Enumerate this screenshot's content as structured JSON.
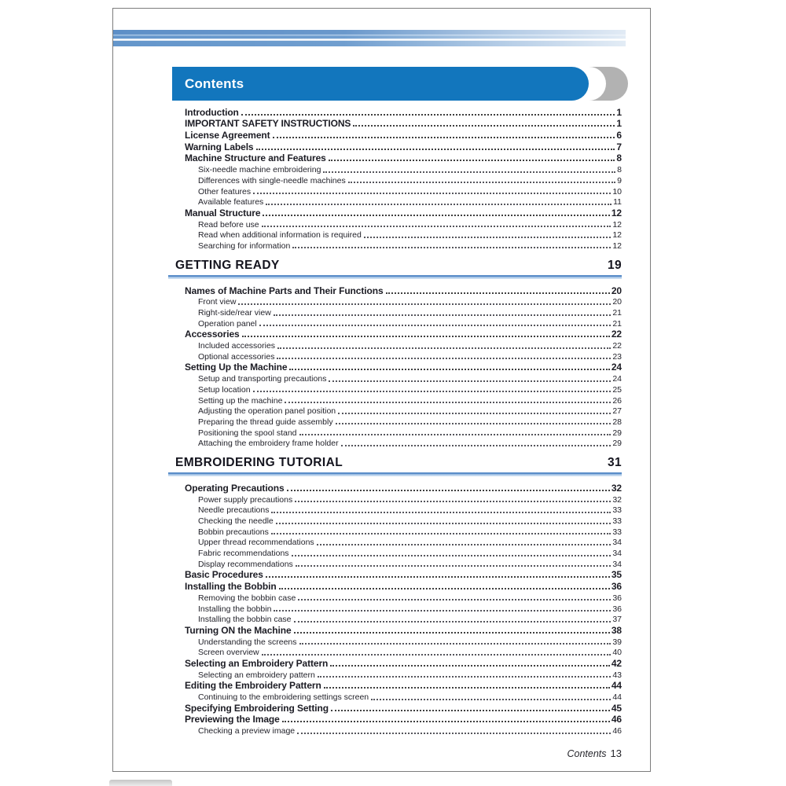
{
  "banner": {
    "title": "Contents"
  },
  "footer": {
    "label": "Contents",
    "page": "13"
  },
  "colors": {
    "banner_blue": "#1276bd",
    "band_blue": "#6496cb",
    "crescent_gray": "#b2b2b2",
    "section_rule_blue": "#5b8ec9",
    "text": "#1c1c24"
  },
  "toc": [
    {
      "type": "entry",
      "level": 1,
      "label": "Introduction",
      "page": "1"
    },
    {
      "type": "entry",
      "level": 1,
      "label": "IMPORTANT SAFETY INSTRUCTIONS",
      "page": "1"
    },
    {
      "type": "entry",
      "level": 1,
      "label": "License Agreement",
      "page": "6"
    },
    {
      "type": "entry",
      "level": 1,
      "label": "Warning Labels",
      "page": "7"
    },
    {
      "type": "entry",
      "level": 1,
      "label": "Machine Structure and Features",
      "page": "8"
    },
    {
      "type": "entry",
      "level": 2,
      "label": "Six-needle machine embroidering",
      "page": "8"
    },
    {
      "type": "entry",
      "level": 2,
      "label": "Differences with single-needle machines",
      "page": "9"
    },
    {
      "type": "entry",
      "level": 2,
      "label": "Other features",
      "page": "10"
    },
    {
      "type": "entry",
      "level": 2,
      "label": "Available features",
      "page": "11"
    },
    {
      "type": "entry",
      "level": 1,
      "label": "Manual Structure",
      "page": "12"
    },
    {
      "type": "entry",
      "level": 2,
      "label": "Read before use",
      "page": "12"
    },
    {
      "type": "entry",
      "level": 2,
      "label": "Read when additional information is required",
      "page": "12"
    },
    {
      "type": "entry",
      "level": 2,
      "label": "Searching for information",
      "page": "12"
    },
    {
      "type": "section",
      "label": "GETTING READY",
      "page": "19"
    },
    {
      "type": "entry",
      "level": 1,
      "label": "Names of Machine Parts and Their Functions",
      "page": "20"
    },
    {
      "type": "entry",
      "level": 2,
      "label": "Front view",
      "page": "20"
    },
    {
      "type": "entry",
      "level": 2,
      "label": "Right-side/rear view",
      "page": "21"
    },
    {
      "type": "entry",
      "level": 2,
      "label": "Operation panel",
      "page": "21"
    },
    {
      "type": "entry",
      "level": 1,
      "label": "Accessories",
      "page": "22"
    },
    {
      "type": "entry",
      "level": 2,
      "label": "Included accessories",
      "page": "22"
    },
    {
      "type": "entry",
      "level": 2,
      "label": "Optional accessories",
      "page": "23"
    },
    {
      "type": "entry",
      "level": 1,
      "label": "Setting Up the Machine",
      "page": "24"
    },
    {
      "type": "entry",
      "level": 2,
      "label": "Setup and transporting precautions",
      "page": "24"
    },
    {
      "type": "entry",
      "level": 2,
      "label": "Setup location",
      "page": "25"
    },
    {
      "type": "entry",
      "level": 2,
      "label": "Setting up the machine",
      "page": "26"
    },
    {
      "type": "entry",
      "level": 2,
      "label": "Adjusting the operation panel position",
      "page": "27"
    },
    {
      "type": "entry",
      "level": 2,
      "label": "Preparing the thread guide assembly",
      "page": "28"
    },
    {
      "type": "entry",
      "level": 2,
      "label": "Positioning the spool stand",
      "page": "29"
    },
    {
      "type": "entry",
      "level": 2,
      "label": "Attaching the embroidery frame holder",
      "page": "29"
    },
    {
      "type": "section",
      "label": "EMBROIDERING TUTORIAL",
      "page": "31"
    },
    {
      "type": "entry",
      "level": 1,
      "label": "Operating Precautions",
      "page": "32"
    },
    {
      "type": "entry",
      "level": 2,
      "label": "Power supply precautions",
      "page": "32"
    },
    {
      "type": "entry",
      "level": 2,
      "label": "Needle precautions",
      "page": "33"
    },
    {
      "type": "entry",
      "level": 2,
      "label": "Checking the needle",
      "page": "33"
    },
    {
      "type": "entry",
      "level": 2,
      "label": "Bobbin precautions",
      "page": "33"
    },
    {
      "type": "entry",
      "level": 2,
      "label": "Upper thread recommendations",
      "page": "34"
    },
    {
      "type": "entry",
      "level": 2,
      "label": "Fabric recommendations",
      "page": "34"
    },
    {
      "type": "entry",
      "level": 2,
      "label": "Display recommendations",
      "page": "34"
    },
    {
      "type": "entry",
      "level": 1,
      "label": "Basic Procedures",
      "page": "35"
    },
    {
      "type": "entry",
      "level": 1,
      "label": "Installing the Bobbin",
      "page": "36"
    },
    {
      "type": "entry",
      "level": 2,
      "label": "Removing the bobbin case",
      "page": "36"
    },
    {
      "type": "entry",
      "level": 2,
      "label": "Installing the bobbin",
      "page": "36"
    },
    {
      "type": "entry",
      "level": 2,
      "label": "Installing the bobbin case",
      "page": "37"
    },
    {
      "type": "entry",
      "level": 1,
      "label": "Turning ON the Machine",
      "page": "38"
    },
    {
      "type": "entry",
      "level": 2,
      "label": "Understanding the screens",
      "page": "39"
    },
    {
      "type": "entry",
      "level": 2,
      "label": "Screen overview",
      "page": "40"
    },
    {
      "type": "entry",
      "level": 1,
      "label": "Selecting an Embroidery Pattern",
      "page": "42"
    },
    {
      "type": "entry",
      "level": 2,
      "label": "Selecting an embroidery pattern",
      "page": "43"
    },
    {
      "type": "entry",
      "level": 1,
      "label": "Editing the Embroidery Pattern",
      "page": "44"
    },
    {
      "type": "entry",
      "level": 2,
      "label": "Continuing to the embroidering settings screen",
      "page": "44"
    },
    {
      "type": "entry",
      "level": 1,
      "label": "Specifying Embroidering Setting",
      "page": "45"
    },
    {
      "type": "entry",
      "level": 1,
      "label": "Previewing the Image",
      "page": "46"
    },
    {
      "type": "entry",
      "level": 2,
      "label": "Checking a preview image",
      "page": "46"
    }
  ]
}
